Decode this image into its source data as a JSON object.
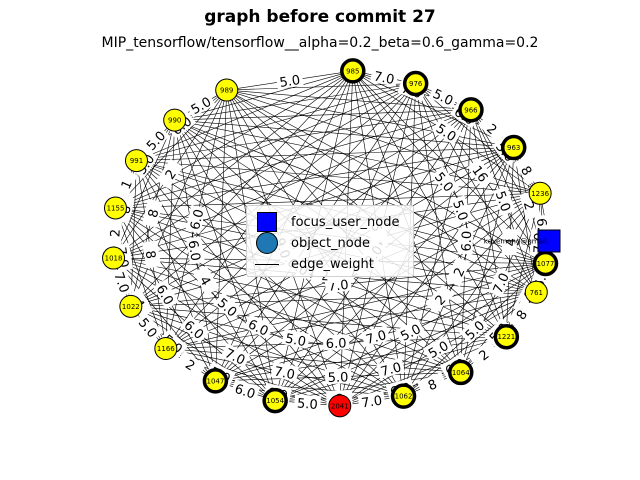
{
  "title": "graph before commit 27",
  "subtitle": "MIP_tensorflow/tensorflow__alpha=0.2_beta=0.6_gamma=0.2",
  "legend": [
    {
      "label": "focus_user_node",
      "symbol": "square",
      "color": "#0000ff"
    },
    {
      "label": "object_node",
      "symbol": "circle",
      "color": "#1f77b4"
    },
    {
      "label": "edge_weight",
      "symbol": "line",
      "color": "#000000"
    }
  ],
  "colors": {
    "node": "#ffff00",
    "focus": "#0000ff",
    "highlight": "#ff0000",
    "edge": "#000000"
  },
  "focus_node": {
    "label": "kevemang@gmail."
  },
  "nodes": [
    {
      "label": "985",
      "bold": true
    },
    {
      "label": "976",
      "bold": true
    },
    {
      "label": "966",
      "bold": true
    },
    {
      "label": "963",
      "bold": true
    },
    {
      "label": "1236",
      "bold": false
    },
    {
      "label": "1077",
      "bold": true
    },
    {
      "label": "761",
      "bold": false
    },
    {
      "label": "1221",
      "bold": true
    },
    {
      "label": "1064",
      "bold": true
    },
    {
      "label": "1062",
      "bold": true
    },
    {
      "label": "2041",
      "bold": false,
      "highlight": true
    },
    {
      "label": "1054",
      "bold": true
    },
    {
      "label": "1047",
      "bold": true
    },
    {
      "label": "1166",
      "bold": false
    },
    {
      "label": "1022",
      "bold": false
    },
    {
      "label": "1018",
      "bold": false
    },
    {
      "label": "1155",
      "bold": false
    },
    {
      "label": "991",
      "bold": false
    },
    {
      "label": "990",
      "bold": false
    },
    {
      "label": "989",
      "bold": false
    }
  ],
  "edge_labels": [
    "7.0",
    "7.0",
    "5.0",
    "5.0",
    "5.0",
    "5.0",
    "5.0",
    "6.0",
    "16",
    "5.0",
    "4",
    "2",
    "5.0",
    "5.0",
    "6.0",
    "7.0",
    "8",
    "2",
    "4",
    "2",
    "5.0",
    "6.0",
    "7.0",
    "7.0",
    "2",
    "2",
    "6.0",
    "6.0",
    "5.0",
    "5.0",
    "7.0",
    "8",
    "5.0",
    "5.0",
    "7.0",
    "2",
    "2",
    "6.0",
    "7.0",
    "6.0",
    "4",
    "8",
    "6.0",
    "5.0",
    "5.0",
    "5.0",
    "7.0",
    "8",
    "7.0",
    "6.0",
    "5.0",
    "5.0",
    "6.0",
    "7.0",
    "5.0",
    "9.0",
    "6.0",
    "5.0",
    "6.0",
    "4",
    "2",
    "5.0",
    "6.0",
    "6.0",
    "5.0",
    "4",
    "8",
    "6.0",
    "7.0",
    "7.0",
    "8",
    "2",
    "8",
    "2",
    "1",
    "5.0",
    "5.0",
    "6.0",
    "5.0",
    "7.0",
    "4",
    "5.0",
    "8",
    "5.0",
    "5.0",
    "2",
    "7.0",
    "6.0",
    "5.0",
    "7.0",
    "7.0",
    "4",
    "2",
    "8",
    "6.0",
    "5.0",
    "6.0",
    "5.0",
    "5.0",
    "6.0",
    "7.0",
    "5.0",
    "8",
    "2",
    "6.0",
    "11.0",
    "9.0",
    "2",
    "8",
    "2",
    "5.0",
    "4",
    "5.0",
    "6.0",
    "7.0",
    "7.0",
    "2"
  ]
}
